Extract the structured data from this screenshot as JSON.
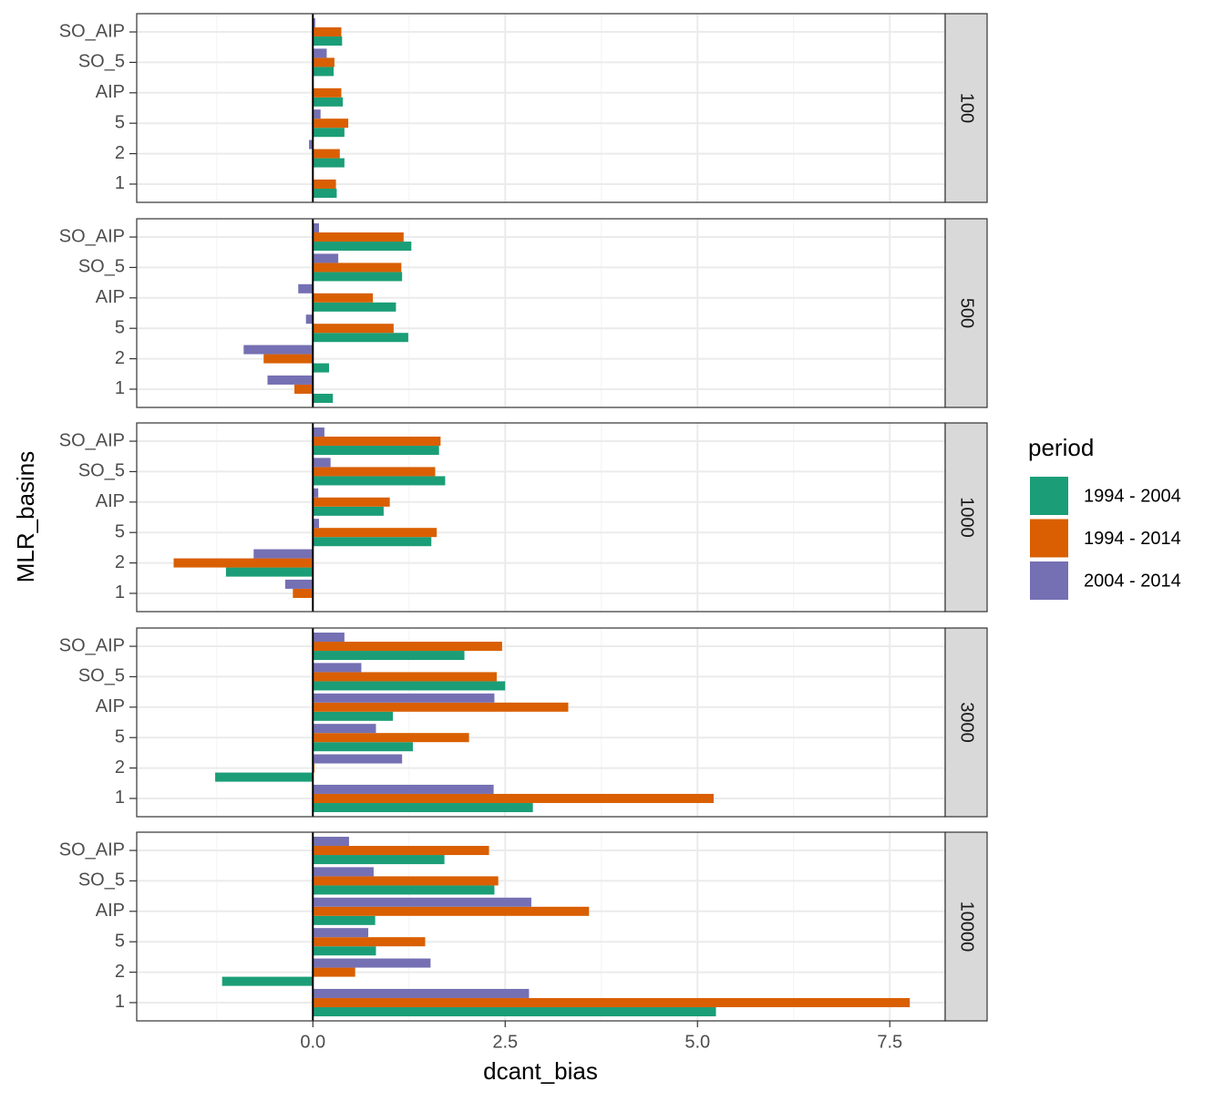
{
  "chart_data": {
    "type": "bar",
    "orientation": "horizontal",
    "x_label": "dcant_bias",
    "y_label": "MLR_basins",
    "legend_title": "period",
    "legend_position": "right",
    "grid": true,
    "vline": 0,
    "categories": [
      "1",
      "2",
      "5",
      "AIP",
      "SO_5",
      "SO_AIP"
    ],
    "xlim": [
      -2.29,
      8.22
    ],
    "xticks": [
      {
        "value": 0,
        "label": "0.0"
      },
      {
        "value": 2.5,
        "label": "2.5"
      },
      {
        "value": 5,
        "label": "5.0"
      },
      {
        "value": 7.5,
        "label": "7.5"
      }
    ],
    "minor_xticks": [
      -1.25,
      1.25,
      3.75,
      6.25
    ],
    "series": [
      {
        "name": "1994 - 2004",
        "color": "#1b9e77"
      },
      {
        "name": "1994 - 2014",
        "color": "#d95f02"
      },
      {
        "name": "2004 - 2014",
        "color": "#7570b3"
      }
    ],
    "panels": [
      {
        "label": "100",
        "values": [
          [
            0.31,
            0.41,
            0.41,
            0.39,
            0.27,
            0.38
          ],
          [
            0.3,
            0.35,
            0.46,
            0.37,
            0.28,
            0.37
          ],
          [
            0.01,
            -0.05,
            0.1,
            0.01,
            0.18,
            0.03
          ]
        ]
      },
      {
        "label": "500",
        "values": [
          [
            0.26,
            0.21,
            1.24,
            1.08,
            1.16,
            1.28
          ],
          [
            -0.24,
            -0.64,
            1.05,
            0.78,
            1.15,
            1.18
          ],
          [
            -0.59,
            -0.9,
            -0.09,
            -0.19,
            0.33,
            0.08
          ]
        ]
      },
      {
        "label": "1000",
        "values": [
          [
            -0.01,
            -1.13,
            1.54,
            0.92,
            1.72,
            1.64
          ],
          [
            -0.26,
            -1.81,
            1.61,
            1.0,
            1.59,
            1.66
          ],
          [
            -0.36,
            -0.77,
            0.08,
            0.07,
            0.23,
            0.15
          ]
        ]
      },
      {
        "label": "3000",
        "values": [
          [
            2.86,
            -1.27,
            1.3,
            1.04,
            2.5,
            1.97
          ],
          [
            5.21,
            0.02,
            2.03,
            3.32,
            2.39,
            2.46
          ],
          [
            2.35,
            1.16,
            0.82,
            2.36,
            0.63,
            0.41
          ]
        ]
      },
      {
        "label": "10000",
        "values": [
          [
            5.24,
            -1.18,
            0.82,
            0.81,
            2.36,
            1.71
          ],
          [
            7.76,
            0.55,
            1.46,
            3.59,
            2.41,
            2.29
          ],
          [
            2.81,
            1.53,
            0.72,
            2.84,
            0.79,
            0.47
          ]
        ]
      }
    ]
  }
}
